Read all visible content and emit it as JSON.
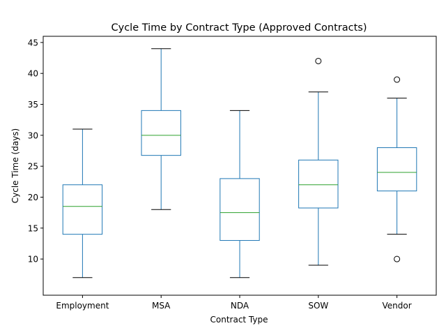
{
  "chart_data": {
    "type": "box",
    "title": "Cycle Time by Contract Type (Approved Contracts)",
    "xlabel": "Contract Type",
    "ylabel": "Cycle Time (days)",
    "ylim": [
      4.15,
      46.0
    ],
    "yticks": [
      10,
      15,
      20,
      25,
      30,
      35,
      40,
      45
    ],
    "grid": false,
    "colors": {
      "box": "#1f77b4",
      "median": "#2ca02c",
      "whisker_cap": "#000000",
      "flier": "#000000"
    },
    "categories": [
      "Employment",
      "MSA",
      "NDA",
      "SOW",
      "Vendor"
    ],
    "boxes": [
      {
        "category": "Employment",
        "whislo": 7,
        "q1": 14,
        "med": 18.5,
        "q3": 22,
        "whishi": 31,
        "fliers": []
      },
      {
        "category": "MSA",
        "whislo": 18,
        "q1": 26.75,
        "med": 30,
        "q3": 34,
        "whishi": 44,
        "fliers": []
      },
      {
        "category": "NDA",
        "whislo": 7,
        "q1": 13,
        "med": 17.5,
        "q3": 23,
        "whishi": 34,
        "fliers": []
      },
      {
        "category": "SOW",
        "whislo": 9,
        "q1": 18.25,
        "med": 22,
        "q3": 26,
        "whishi": 37,
        "fliers": [
          42
        ]
      },
      {
        "category": "Vendor",
        "whislo": 14,
        "q1": 21,
        "med": 24,
        "q3": 28,
        "whishi": 36,
        "fliers": [
          10,
          39
        ]
      }
    ]
  }
}
